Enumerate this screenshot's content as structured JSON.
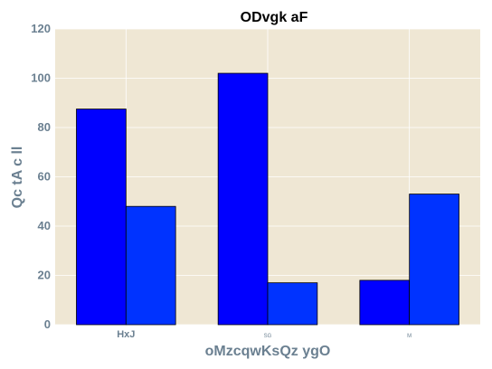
{
  "chart_data": {
    "type": "bar",
    "title": "ODvgk aF",
    "xlabel": "oMzcqwKsQz ygO",
    "ylabel": "Qc tA c ll",
    "categories": [
      "HxJ",
      "SG",
      "M"
    ],
    "series": [
      {
        "values": [
          87.5,
          102,
          18
        ],
        "color": "#0000ff"
      },
      {
        "values": [
          48,
          17,
          53
        ],
        "color": "#0033ff"
      }
    ],
    "ylim": [
      0,
      120
    ],
    "yticks": [
      "0",
      "20",
      "40",
      "60",
      "80",
      "100",
      "120"
    ],
    "grid": true,
    "background": "#efe7d4",
    "axis_text_color": "#6b8091"
  }
}
